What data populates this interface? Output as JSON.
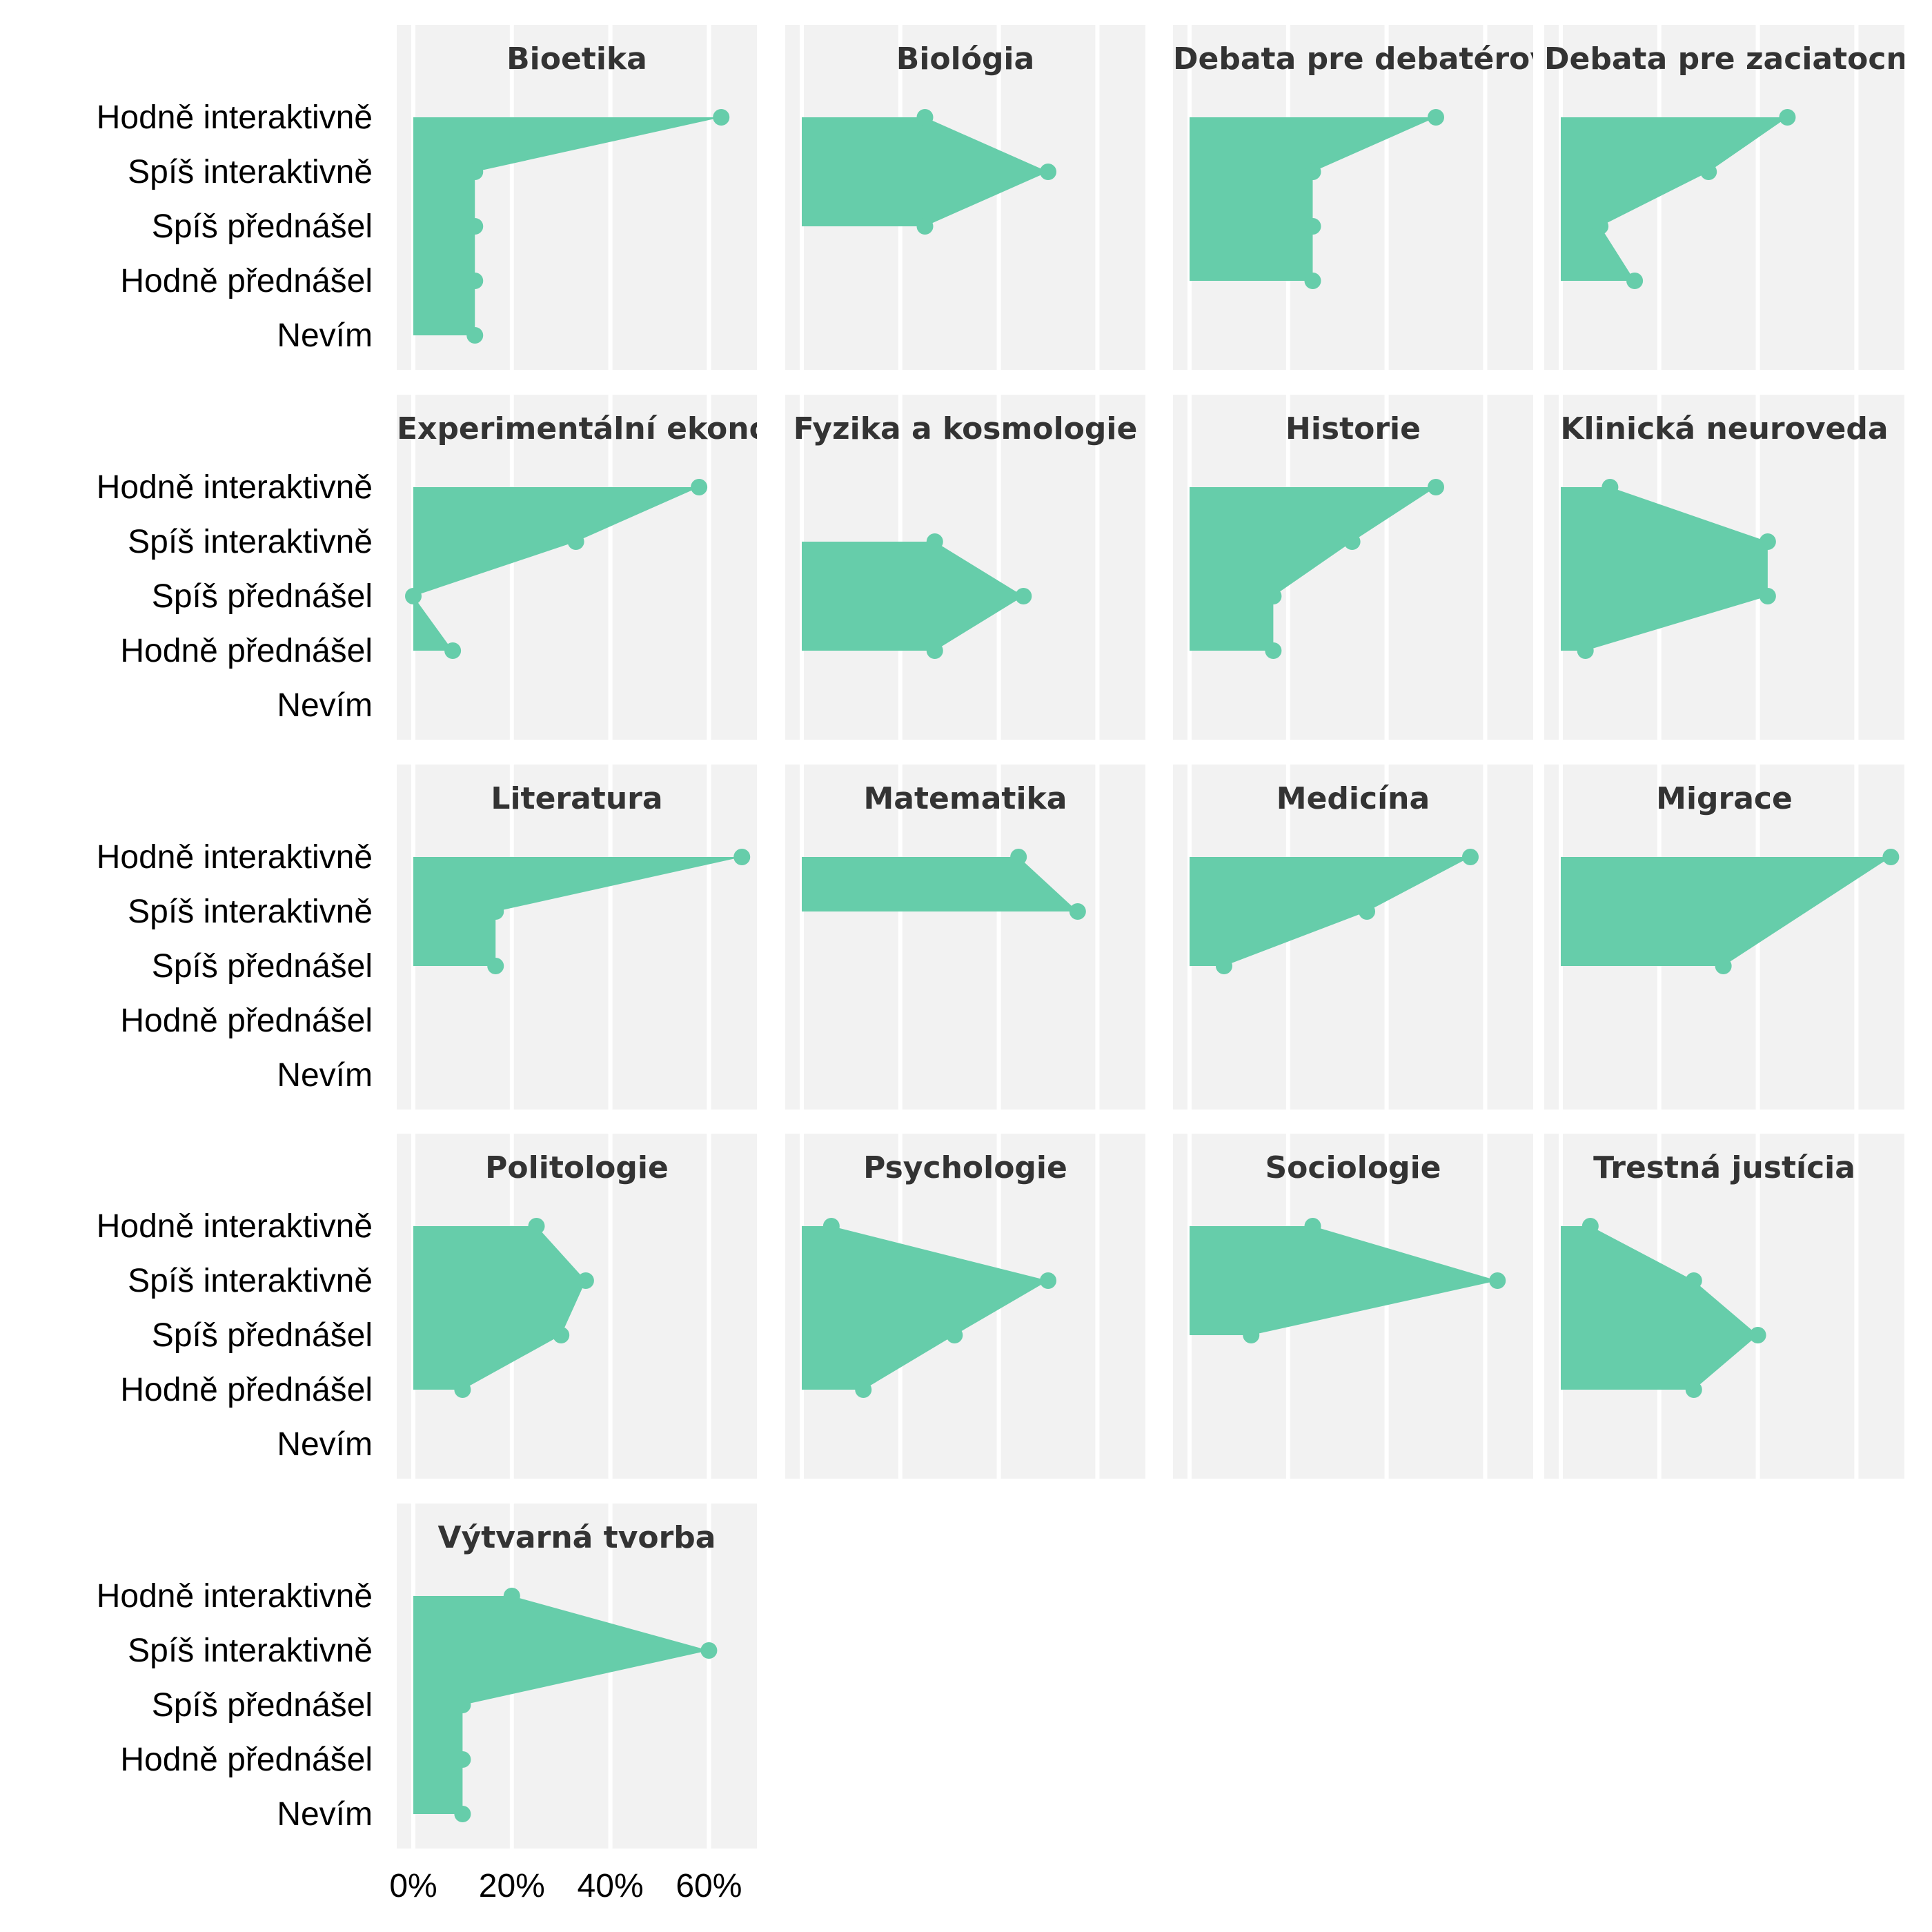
{
  "chart_data": {
    "type": "area",
    "categories": [
      "Hodně interaktivně",
      "Spíš interaktivně",
      "Spíš přednášel",
      "Hodně přednášel",
      "Nevím"
    ],
    "x_ticks": [
      "0%",
      "20%",
      "40%",
      "60%"
    ],
    "xlim": [
      0,
      70
    ],
    "colors": {
      "fill": "#66cdaa",
      "panel": "#f2f2f2"
    },
    "grid": true,
    "panels": [
      {
        "title": "Bioetika",
        "values": [
          62.5,
          12.5,
          12.5,
          12.5,
          12.5
        ]
      },
      {
        "title": "Biológia",
        "values": [
          25,
          50,
          25,
          null,
          null
        ]
      },
      {
        "title": "Debata pre debatérov",
        "values": [
          50,
          25,
          25,
          25,
          null
        ]
      },
      {
        "title": "Debata pre zaciatocníkov",
        "values": [
          46,
          30,
          8,
          15,
          null
        ]
      },
      {
        "title": "Experimentální ekonomie",
        "values": [
          58,
          33,
          0,
          8,
          null
        ]
      },
      {
        "title": "Fyzika a kosmologie",
        "values": [
          null,
          27,
          45,
          27,
          null
        ]
      },
      {
        "title": "Historie",
        "values": [
          50,
          33,
          17,
          17,
          null
        ]
      },
      {
        "title": "Klinická neuroveda",
        "values": [
          10,
          42,
          42,
          5,
          null
        ]
      },
      {
        "title": "Literatura",
        "values": [
          66.7,
          16.7,
          16.7,
          null,
          null
        ]
      },
      {
        "title": "Matematika",
        "values": [
          44,
          56,
          null,
          null,
          null
        ]
      },
      {
        "title": "Medicína",
        "values": [
          57,
          36,
          7,
          null,
          null
        ]
      },
      {
        "title": "Migrace",
        "values": [
          67,
          null,
          33,
          null,
          null
        ]
      },
      {
        "title": "Politologie",
        "values": [
          25,
          35,
          30,
          10,
          null
        ]
      },
      {
        "title": "Psychologie",
        "values": [
          6,
          50,
          31,
          12.5,
          null
        ]
      },
      {
        "title": "Sociologie",
        "values": [
          25,
          62.5,
          12.5,
          null,
          null
        ]
      },
      {
        "title": "Trestná justícia",
        "values": [
          6,
          27,
          40,
          27,
          null
        ]
      },
      {
        "title": "Výtvarná tvorba",
        "values": [
          20,
          60,
          10,
          10,
          10
        ]
      }
    ]
  }
}
